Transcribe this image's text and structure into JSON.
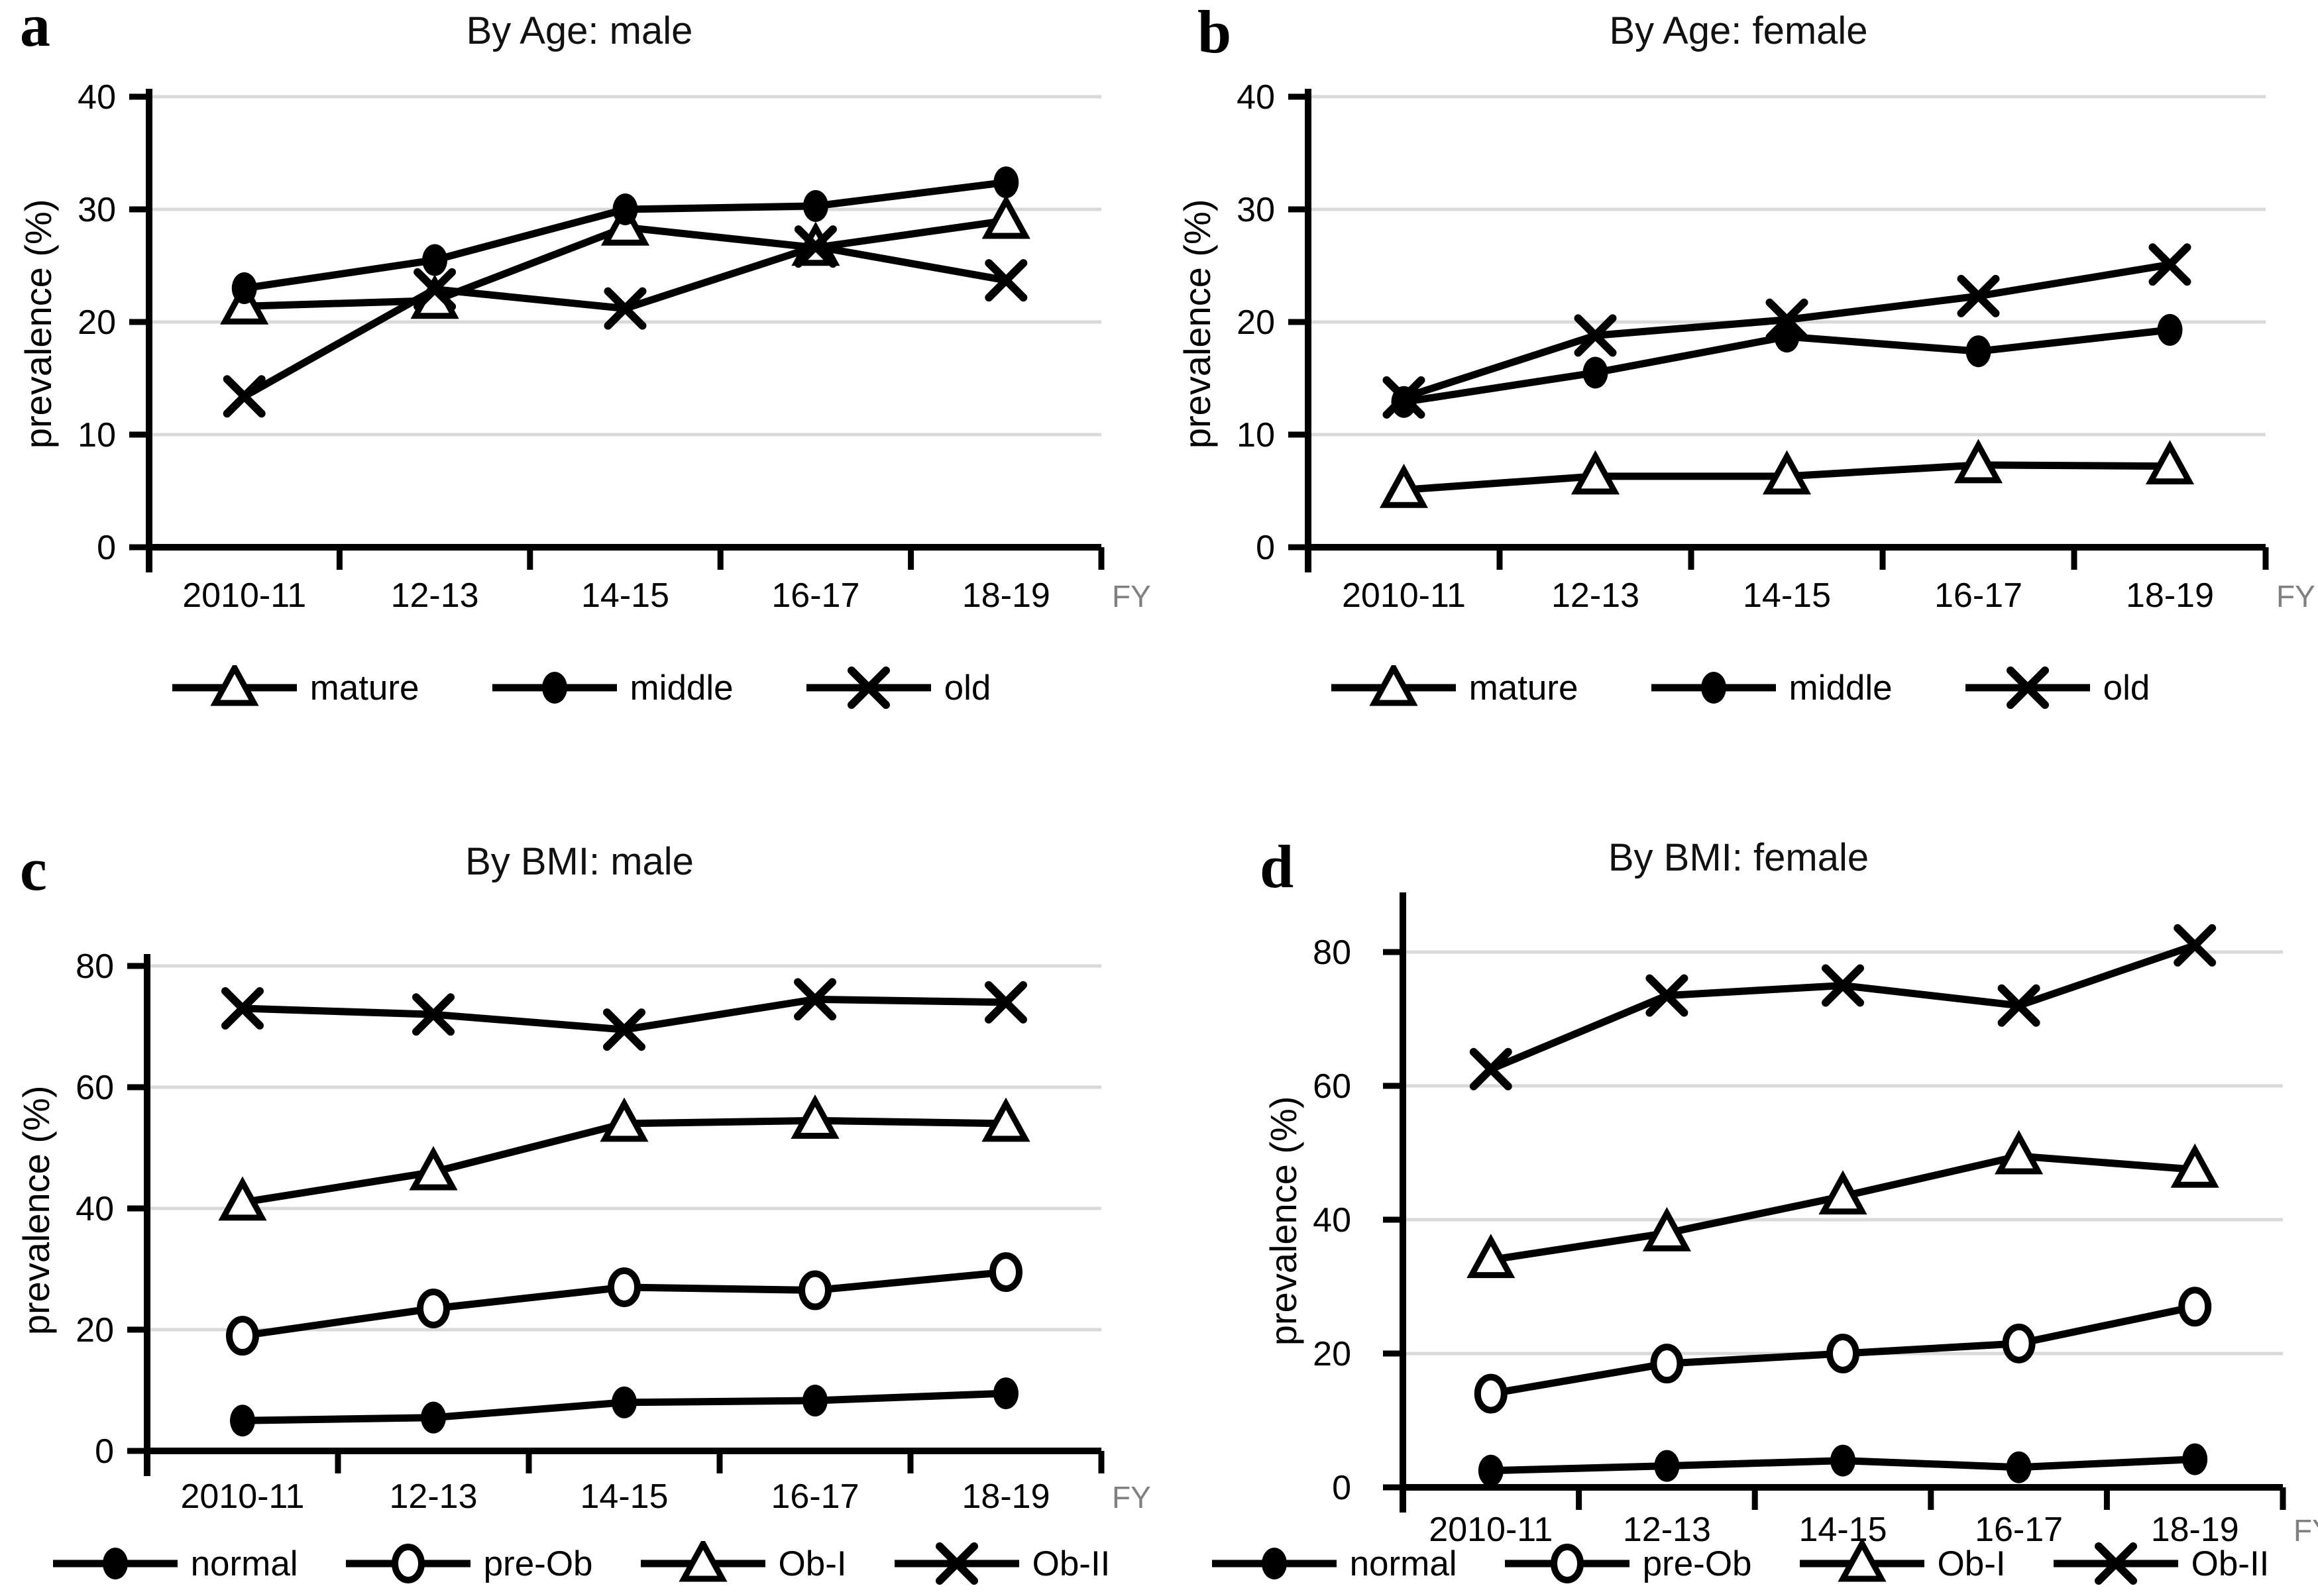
{
  "figure": {
    "background": "#ffffff",
    "line_color": "#000000",
    "grid_color": "#d9d9d9",
    "fy_color": "#808080",
    "fy_label": "FY"
  },
  "chart_data": [
    {
      "id": "a",
      "panel_label": "a",
      "type": "line",
      "title": "By Age: male",
      "ylabel": "prevalence (%)",
      "xlabel": "FY",
      "categories": [
        "2010-11",
        "12-13",
        "14-15",
        "16-17",
        "18-19"
      ],
      "yticks": [
        0,
        10,
        20,
        30,
        40
      ],
      "ylim": [
        0,
        40
      ],
      "grid": true,
      "legend_position": "bottom",
      "series": [
        {
          "name": "mature",
          "marker": "triangle-open",
          "values": [
            21.4,
            21.9,
            28.4,
            26.6,
            29.0
          ]
        },
        {
          "name": "middle",
          "marker": "circle-filled",
          "values": [
            23.0,
            25.5,
            30.0,
            30.3,
            32.4
          ]
        },
        {
          "name": "old",
          "marker": "x",
          "values": [
            13.4,
            22.9,
            21.2,
            26.7,
            23.7
          ]
        }
      ]
    },
    {
      "id": "b",
      "panel_label": "b",
      "type": "line",
      "title": "By Age: female",
      "ylabel": "prevalence (%)",
      "xlabel": "FY",
      "categories": [
        "2010-11",
        "12-13",
        "14-15",
        "16-17",
        "18-19"
      ],
      "yticks": [
        0,
        10,
        20,
        30,
        40
      ],
      "ylim": [
        0,
        40
      ],
      "grid": true,
      "legend_position": "bottom",
      "series": [
        {
          "name": "mature",
          "marker": "triangle-open",
          "values": [
            5.1,
            6.3,
            6.3,
            7.3,
            7.2
          ]
        },
        {
          "name": "middle",
          "marker": "circle-filled",
          "values": [
            12.9,
            15.5,
            18.7,
            17.4,
            19.3
          ]
        },
        {
          "name": "old",
          "marker": "x",
          "values": [
            13.3,
            18.8,
            20.2,
            22.3,
            25.1
          ]
        }
      ]
    },
    {
      "id": "c",
      "panel_label": "c",
      "type": "line",
      "title": "By BMI: male",
      "ylabel": "prevalence (%)",
      "xlabel": "FY",
      "categories": [
        "2010-11",
        "12-13",
        "14-15",
        "16-17",
        "18-19"
      ],
      "yticks": [
        0,
        20,
        40,
        60,
        80
      ],
      "ylim": [
        0,
        80
      ],
      "grid": true,
      "legend_position": "bottom",
      "series": [
        {
          "name": "normal",
          "marker": "circle-filled",
          "values": [
            5.0,
            5.5,
            8.0,
            8.3,
            9.5
          ]
        },
        {
          "name": "pre-Ob",
          "marker": "circle-open",
          "values": [
            19.0,
            23.5,
            27.0,
            26.5,
            29.5
          ]
        },
        {
          "name": "Ob-I",
          "marker": "triangle-open",
          "values": [
            41.0,
            46.0,
            54.0,
            54.5,
            54.0
          ]
        },
        {
          "name": "Ob-II",
          "marker": "x",
          "values": [
            73.0,
            72.0,
            69.5,
            74.5,
            74.0
          ]
        }
      ]
    },
    {
      "id": "d",
      "panel_label": "d",
      "type": "line",
      "title": "By BMI: female",
      "ylabel": "prevalence (%)",
      "xlabel": "FY",
      "categories": [
        "2010-11",
        "12-13",
        "14-15",
        "16-17",
        "18-19"
      ],
      "yticks": [
        0,
        20,
        40,
        60,
        80
      ],
      "ylim": [
        0,
        80
      ],
      "grid": true,
      "legend_position": "bottom",
      "series": [
        {
          "name": "normal",
          "marker": "circle-filled",
          "values": [
            2.5,
            3.2,
            4.0,
            3.0,
            4.2
          ]
        },
        {
          "name": "pre-Ob",
          "marker": "circle-open",
          "values": [
            14.0,
            18.5,
            20.0,
            21.5,
            27.0
          ]
        },
        {
          "name": "Ob-I",
          "marker": "triangle-open",
          "values": [
            34.0,
            38.0,
            43.5,
            49.5,
            47.5
          ]
        },
        {
          "name": "Ob-II",
          "marker": "x",
          "values": [
            62.5,
            73.5,
            75.0,
            72.0,
            81.0
          ]
        }
      ]
    }
  ]
}
